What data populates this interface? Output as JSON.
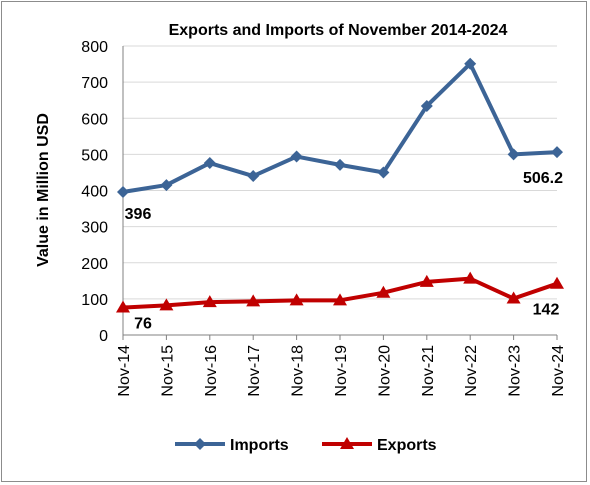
{
  "chart_data": {
    "type": "line",
    "title": "Exports and Imports of November 2014-2024",
    "xlabel": "",
    "ylabel": "Value in  Million  USD",
    "categories": [
      "Nov-14",
      "Nov-15",
      "Nov-16",
      "Nov-17",
      "Nov-18",
      "Nov-19",
      "Nov-20",
      "Nov-21",
      "Nov-22",
      "Nov-23",
      "Nov-24"
    ],
    "ylim": [
      0,
      800
    ],
    "yticks": [
      "0",
      "100",
      "200",
      "300",
      "400",
      "500",
      "600",
      "700",
      "800"
    ],
    "grid": "horizontal",
    "legend_position": "bottom",
    "series": [
      {
        "name": "Imports",
        "color": "#3C6496",
        "marker": "diamond",
        "values": [
          396,
          415,
          476,
          440,
          494,
          471,
          450,
          634,
          751,
          500,
          506.2
        ]
      },
      {
        "name": "Exports",
        "color": "#C00000",
        "marker": "triangle",
        "values": [
          76,
          82,
          91,
          93,
          96,
          96,
          117,
          147,
          156,
          101,
          142
        ]
      }
    ],
    "data_labels": [
      {
        "series": 0,
        "index": 0,
        "text": "396"
      },
      {
        "series": 0,
        "index": 10,
        "text": "506.2"
      },
      {
        "series": 1,
        "index": 0,
        "text": "76"
      },
      {
        "series": 1,
        "index": 10,
        "text": "142"
      }
    ]
  }
}
